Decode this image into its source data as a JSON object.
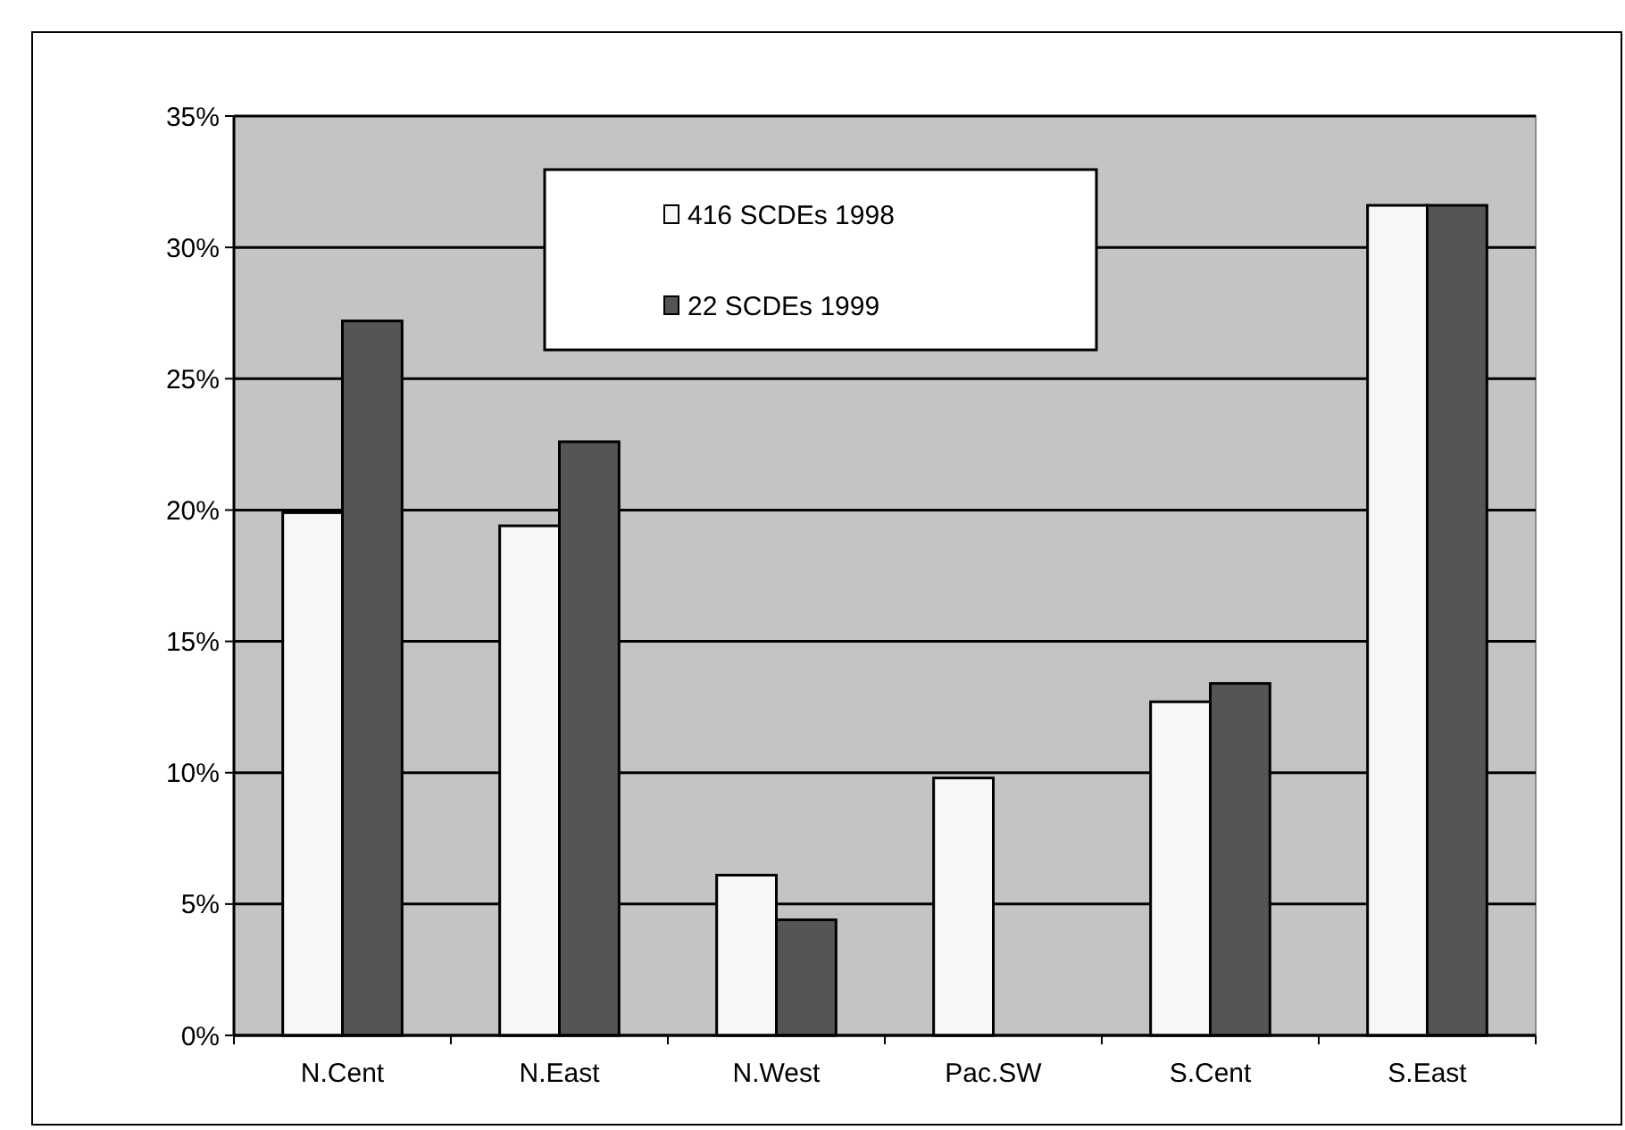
{
  "chart_data": {
    "type": "bar",
    "categories": [
      "N.Cent",
      "N.East",
      "N.West",
      "Pac.SW",
      "S.Cent",
      "S.East"
    ],
    "series": [
      {
        "name": "416 SCDEs 1998",
        "color": "#f7f7f7",
        "values": [
          19.9,
          19.4,
          6.1,
          9.8,
          12.7,
          31.6
        ]
      },
      {
        "name": "22 SCDEs 1999",
        "color": "#555555",
        "values": [
          27.2,
          22.6,
          4.4,
          null,
          13.4,
          31.6
        ]
      }
    ],
    "ylim": [
      0,
      35
    ],
    "yticks": [
      {
        "value": 0,
        "label": "0%"
      },
      {
        "value": 5,
        "label": "5%"
      },
      {
        "value": 10,
        "label": "10%"
      },
      {
        "value": 15,
        "label": "15%"
      },
      {
        "value": 20,
        "label": "20%"
      },
      {
        "value": 25,
        "label": "25%"
      },
      {
        "value": 30,
        "label": "30%"
      },
      {
        "value": 35,
        "label": "35%"
      }
    ],
    "grid": "y",
    "legend": "top"
  }
}
